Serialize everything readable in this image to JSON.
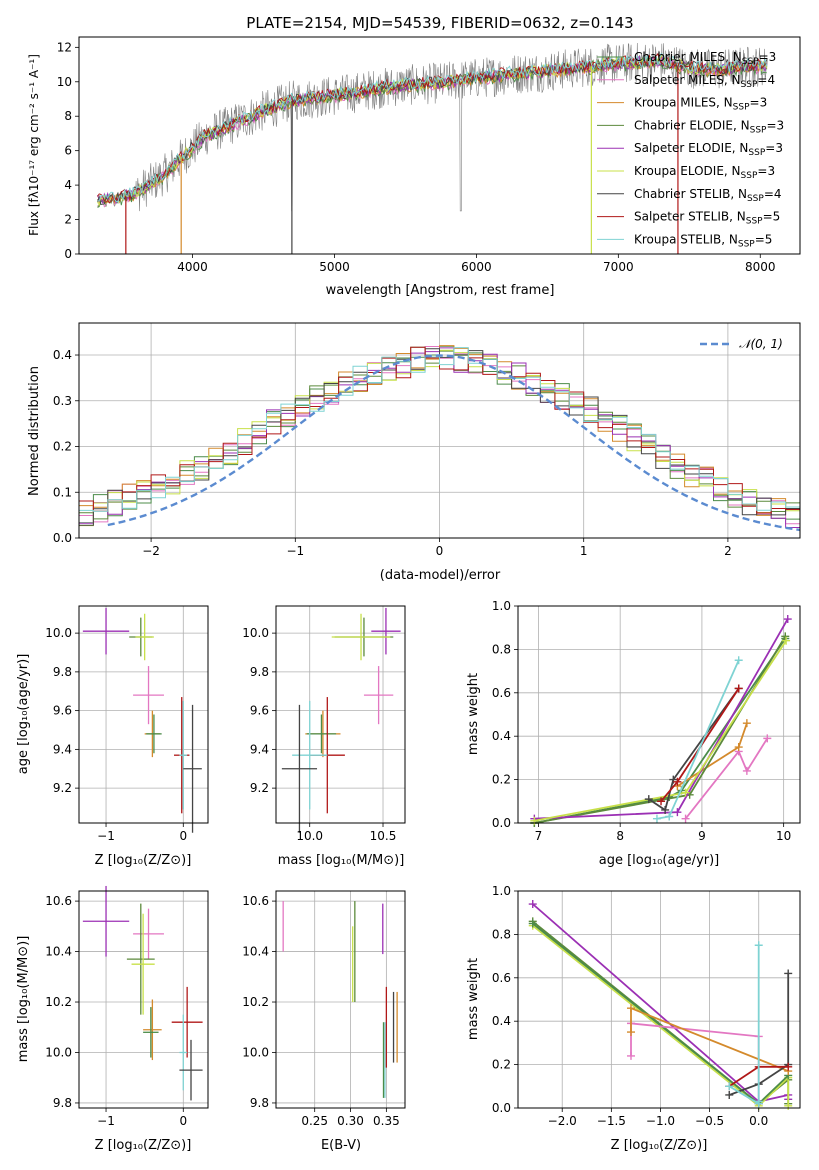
{
  "figure": {
    "title": "PLATE=2154, MJD=54539, FIBERID=0632, z=0.143"
  },
  "colors": {
    "Chabrier MILES": "#4c8c4a",
    "Salpeter MILES": "#e377c2",
    "Kroupa MILES": "#d48a2c",
    "Chabrier ELODIE": "#5c8a3c",
    "Salpeter ELODIE": "#9b30b4",
    "Kroupa ELODIE": "#c8e04a",
    "Chabrier STELIB": "#444444",
    "Salpeter STELIB": "#b01818",
    "Kroupa STELIB": "#7fd3d3",
    "data": "#808080",
    "normal": "#5b8bd0"
  },
  "chart_data": [
    {
      "id": "spectrum",
      "type": "line",
      "title": "PLATE=2154, MJD=54539, FIBERID=0632, z=0.143",
      "xlabel": "wavelength [Angstrom, rest frame]",
      "ylabel": "Flux [fλ10⁻¹⁷ erg cm⁻² s⁻¹ A⁻¹]",
      "xlim": [
        3200,
        8280
      ],
      "ylim": [
        0,
        12.6
      ],
      "xticks": [
        4000,
        5000,
        6000,
        7000,
        8000
      ],
      "yticks": [
        0,
        2,
        4,
        6,
        8,
        10,
        12
      ],
      "legend_position": "top-right",
      "legend": [
        {
          "label": "Chabrier MILES",
          "n": "3"
        },
        {
          "label": "Salpeter MILES",
          "n": "4"
        },
        {
          "label": "Kroupa MILES",
          "n": "3"
        },
        {
          "label": "Chabrier ELODIE",
          "n": "3"
        },
        {
          "label": "Salpeter ELODIE",
          "n": "3"
        },
        {
          "label": "Kroupa ELODIE",
          "n": "3"
        },
        {
          "label": "Chabrier STELIB",
          "n": "4"
        },
        {
          "label": "Salpeter STELIB",
          "n": "5"
        },
        {
          "label": "Kroupa STELIB",
          "n": "5"
        }
      ],
      "continuum": {
        "x": [
          3330,
          3500,
          3600,
          3800,
          3950,
          4100,
          4300,
          4500,
          4700,
          4900,
          5100,
          5300,
          5500,
          5700,
          5900,
          6100,
          6300,
          6500,
          6700,
          6900,
          7100,
          7300,
          7500,
          7700,
          7900,
          8050
        ],
        "y": [
          3.1,
          3.3,
          3.5,
          4.6,
          5.8,
          6.9,
          7.6,
          8.3,
          8.9,
          9.1,
          9.3,
          9.6,
          9.8,
          9.9,
          10.1,
          10.3,
          10.5,
          10.6,
          10.8,
          11.0,
          11.1,
          11.2,
          10.8,
          10.7,
          10.9,
          10.9
        ]
      }
    },
    {
      "id": "residuals",
      "type": "line",
      "xlabel": "(data-model)/error",
      "ylabel": "Normed distribution",
      "xlim": [
        -2.5,
        2.5
      ],
      "ylim": [
        0,
        0.47
      ],
      "xticks": [
        -2,
        -1,
        0,
        1,
        2
      ],
      "yticks": [
        0.0,
        0.1,
        0.2,
        0.3,
        0.4
      ],
      "legend_position": "top-right",
      "legend": [
        {
          "label": "𝒩(0, 1)"
        }
      ],
      "hist_bin_width": 0.1,
      "hist_base": [
        0.03,
        0.03,
        0.035,
        0.04,
        0.05,
        0.055,
        0.065,
        0.075,
        0.09,
        0.1,
        0.11,
        0.125,
        0.14,
        0.155,
        0.17,
        0.19,
        0.21,
        0.23,
        0.25,
        0.265,
        0.285,
        0.305,
        0.32,
        0.335,
        0.35,
        0.36,
        0.37,
        0.38,
        0.39,
        0.39,
        0.395,
        0.39,
        0.385,
        0.375,
        0.365,
        0.355,
        0.34,
        0.325,
        0.31,
        0.295,
        0.28,
        0.26,
        0.24,
        0.22,
        0.2,
        0.18,
        0.16,
        0.14,
        0.125,
        0.11,
        0.095,
        0.08,
        0.07,
        0.06,
        0.05,
        0.045,
        0.04,
        0.035,
        0.03,
        0.03
      ]
    },
    {
      "id": "age-vs-Z",
      "type": "scatter",
      "xlabel": "Z [log₁₀(Z/Z⊙)]",
      "ylabel": "age  [log₁₀(age/yr)]",
      "xlim": [
        -1.35,
        0.32
      ],
      "ylim": [
        9.02,
        10.14
      ],
      "xticks": [
        -1,
        0
      ],
      "yticks": [
        9.2,
        9.4,
        9.6,
        9.8,
        10.0
      ],
      "points": [
        {
          "model": "Salpeter ELODIE",
          "x": -1.0,
          "y": 10.01,
          "xerr": 0.3,
          "yerr": 0.12
        },
        {
          "model": "Chabrier ELODIE",
          "x": -0.55,
          "y": 9.98,
          "xerr": 0.15,
          "yerr": 0.1
        },
        {
          "model": "Kroupa ELODIE",
          "x": -0.5,
          "y": 9.98,
          "xerr": 0.12,
          "yerr": 0.12
        },
        {
          "model": "Salpeter MILES",
          "x": -0.45,
          "y": 9.68,
          "xerr": 0.2,
          "yerr": 0.15
        },
        {
          "model": "Kroupa MILES",
          "x": -0.4,
          "y": 9.48,
          "xerr": 0.1,
          "yerr": 0.12
        },
        {
          "model": "Chabrier MILES",
          "x": -0.38,
          "y": 9.48,
          "xerr": 0.1,
          "yerr": 0.1
        },
        {
          "model": "Salpeter STELIB",
          "x": -0.02,
          "y": 9.37,
          "xerr": 0.1,
          "yerr": 0.3
        },
        {
          "model": "Kroupa STELIB",
          "x": 0.0,
          "y": 9.37,
          "xerr": 0.05,
          "yerr": 0.28
        },
        {
          "model": "Chabrier STELIB",
          "x": 0.12,
          "y": 9.3,
          "xerr": 0.12,
          "yerr": 0.33
        }
      ]
    },
    {
      "id": "age-vs-mass",
      "type": "scatter",
      "xlabel": "mass [log₁₀(M/M⊙)]",
      "ylabel": "",
      "xlim": [
        9.77,
        10.65
      ],
      "ylim": [
        9.02,
        10.14
      ],
      "xticks": [
        10.0,
        10.5
      ],
      "yticks": [
        9.2,
        9.4,
        9.6,
        9.8,
        10.0
      ],
      "points": [
        {
          "model": "Salpeter ELODIE",
          "x": 10.52,
          "y": 10.01,
          "xerr": 0.1,
          "yerr": 0.12
        },
        {
          "model": "Chabrier ELODIE",
          "x": 10.37,
          "y": 9.98,
          "xerr": 0.2,
          "yerr": 0.1
        },
        {
          "model": "Kroupa ELODIE",
          "x": 10.35,
          "y": 9.98,
          "xerr": 0.2,
          "yerr": 0.12
        },
        {
          "model": "Salpeter MILES",
          "x": 10.47,
          "y": 9.68,
          "xerr": 0.1,
          "yerr": 0.15
        },
        {
          "model": "Kroupa MILES",
          "x": 10.09,
          "y": 9.48,
          "xerr": 0.12,
          "yerr": 0.12
        },
        {
          "model": "Chabrier MILES",
          "x": 10.08,
          "y": 9.48,
          "xerr": 0.1,
          "yerr": 0.1
        },
        {
          "model": "Salpeter STELIB",
          "x": 10.12,
          "y": 9.37,
          "xerr": 0.12,
          "yerr": 0.3
        },
        {
          "model": "Kroupa STELIB",
          "x": 10.0,
          "y": 9.37,
          "xerr": 0.12,
          "yerr": 0.28
        },
        {
          "model": "Chabrier STELIB",
          "x": 9.93,
          "y": 9.3,
          "xerr": 0.12,
          "yerr": 0.33
        }
      ]
    },
    {
      "id": "weight-vs-age",
      "type": "line",
      "xlabel": "age  [log₁₀(age/yr)]",
      "ylabel": "mass weight",
      "xlim": [
        6.75,
        10.2
      ],
      "ylim": [
        0,
        1.0
      ],
      "xticks": [
        7,
        8,
        9,
        10
      ],
      "yticks": [
        0.0,
        0.2,
        0.4,
        0.6,
        0.8,
        1.0
      ],
      "series": [
        {
          "model": "Chabrier MILES",
          "x": [
            6.95,
            8.6,
            8.75,
            10.02
          ],
          "y": [
            0.0,
            0.12,
            0.15,
            0.85
          ]
        },
        {
          "model": "Salpeter MILES",
          "x": [
            8.8,
            9.45,
            9.55,
            9.8
          ],
          "y": [
            0.02,
            0.33,
            0.24,
            0.39
          ]
        },
        {
          "model": "Kroupa MILES",
          "x": [
            8.7,
            9.45,
            9.55
          ],
          "y": [
            0.17,
            0.35,
            0.46
          ]
        },
        {
          "model": "Chabrier ELODIE",
          "x": [
            6.95,
            8.85,
            10.02
          ],
          "y": [
            0.0,
            0.13,
            0.86
          ]
        },
        {
          "model": "Salpeter ELODIE",
          "x": [
            6.95,
            8.7,
            10.05
          ],
          "y": [
            0.02,
            0.05,
            0.94
          ]
        },
        {
          "model": "Kroupa ELODIE",
          "x": [
            6.95,
            8.8,
            10.03
          ],
          "y": [
            0.01,
            0.14,
            0.84
          ]
        },
        {
          "model": "Chabrier STELIB",
          "x": [
            8.35,
            8.55,
            8.65,
            9.45
          ],
          "y": [
            0.11,
            0.06,
            0.2,
            0.62
          ]
        },
        {
          "model": "Salpeter STELIB",
          "x": [
            8.5,
            8.7,
            9.45
          ],
          "y": [
            0.1,
            0.19,
            0.62
          ]
        },
        {
          "model": "Kroupa STELIB",
          "x": [
            8.45,
            8.6,
            9.45
          ],
          "y": [
            0.02,
            0.03,
            0.75
          ]
        }
      ]
    },
    {
      "id": "mass-vs-Z",
      "type": "scatter",
      "xlabel": "Z [log₁₀(Z/Z⊙)]",
      "ylabel": "mass [log₁₀(M/M⊙)]",
      "xlim": [
        -1.35,
        0.32
      ],
      "ylim": [
        9.78,
        10.64
      ],
      "xticks": [
        -1,
        0
      ],
      "yticks": [
        9.8,
        10.0,
        10.2,
        10.4,
        10.6
      ],
      "points": [
        {
          "model": "Salpeter ELODIE",
          "x": -1.0,
          "y": 10.52,
          "xerr": 0.3,
          "yerr": 0.14
        },
        {
          "model": "Salpeter MILES",
          "x": -0.45,
          "y": 10.47,
          "xerr": 0.2,
          "yerr": 0.1
        },
        {
          "model": "Chabrier ELODIE",
          "x": -0.55,
          "y": 10.37,
          "xerr": 0.18,
          "yerr": 0.22
        },
        {
          "model": "Kroupa ELODIE",
          "x": -0.52,
          "y": 10.35,
          "xerr": 0.15,
          "yerr": 0.2
        },
        {
          "model": "Kroupa MILES",
          "x": -0.4,
          "y": 10.09,
          "xerr": 0.12,
          "yerr": 0.12
        },
        {
          "model": "Chabrier MILES",
          "x": -0.42,
          "y": 10.08,
          "xerr": 0.1,
          "yerr": 0.1
        },
        {
          "model": "Salpeter STELIB",
          "x": 0.05,
          "y": 10.12,
          "xerr": 0.2,
          "yerr": 0.14
        },
        {
          "model": "Kroupa STELIB",
          "x": 0.0,
          "y": 10.0,
          "xerr": 0.05,
          "yerr": 0.15
        },
        {
          "model": "Chabrier STELIB",
          "x": 0.1,
          "y": 9.93,
          "xerr": 0.15,
          "yerr": 0.12
        }
      ]
    },
    {
      "id": "mass-vs-ebv",
      "type": "scatter",
      "xlabel": "E(B-V)",
      "ylabel": "",
      "xlim": [
        0.196,
        0.376
      ],
      "ylim": [
        9.78,
        10.64
      ],
      "xticks": [
        0.25,
        0.3,
        0.35
      ],
      "yticks": [
        9.8,
        10.0,
        10.2,
        10.4,
        10.6
      ],
      "points": [
        {
          "model": "Salpeter MILES",
          "x": 0.206,
          "y": 10.5,
          "yerr": 0.1
        },
        {
          "model": "Chabrier ELODIE",
          "x": 0.306,
          "y": 10.4,
          "yerr": 0.2
        },
        {
          "model": "Kroupa ELODIE",
          "x": 0.303,
          "y": 10.35,
          "yerr": 0.15
        },
        {
          "model": "Salpeter ELODIE",
          "x": 0.345,
          "y": 10.49,
          "yerr": 0.1
        },
        {
          "model": "Salpeter STELIB",
          "x": 0.35,
          "y": 10.1,
          "yerr": 0.16
        },
        {
          "model": "Kroupa STELIB",
          "x": 0.348,
          "y": 9.97,
          "yerr": 0.15
        },
        {
          "model": "Chabrier MILES",
          "x": 0.346,
          "y": 9.97,
          "yerr": 0.15
        },
        {
          "model": "Kroupa MILES",
          "x": 0.365,
          "y": 10.1,
          "yerr": 0.14
        },
        {
          "model": "Chabrier STELIB",
          "x": 0.36,
          "y": 10.1,
          "yerr": 0.14
        }
      ]
    },
    {
      "id": "weight-vs-Z",
      "type": "line",
      "xlabel": "Z [log₁₀(Z/Z⊙)]",
      "ylabel": "mass weight",
      "xlim": [
        -2.45,
        0.42
      ],
      "ylim": [
        0,
        1.0
      ],
      "xticks": [
        -2.0,
        -1.5,
        -1.0,
        -0.5,
        0.0
      ],
      "yticks": [
        0.0,
        0.2,
        0.4,
        0.6,
        0.8,
        1.0
      ],
      "series": [
        {
          "model": "Salpeter ELODIE",
          "x": [
            -2.3,
            0.0,
            0.3,
            0.3
          ],
          "y": [
            0.94,
            0.03,
            0.06,
            0.04
          ]
        },
        {
          "model": "Chabrier ELODIE",
          "x": [
            -2.3,
            0.0,
            0.3,
            0.3
          ],
          "y": [
            0.86,
            0.02,
            0.13,
            0.02
          ]
        },
        {
          "model": "Kroupa ELODIE",
          "x": [
            -2.3,
            0.0,
            0.3,
            0.3
          ],
          "y": [
            0.84,
            0.01,
            0.14,
            0.01
          ]
        },
        {
          "model": "Chabrier MILES",
          "x": [
            -2.3,
            0.0,
            0.3
          ],
          "y": [
            0.85,
            0.02,
            0.15
          ]
        },
        {
          "model": "Salpeter MILES",
          "x": [
            -1.3,
            -1.3,
            0.0,
            0.0
          ],
          "y": [
            0.24,
            0.39,
            0.33,
            0.02
          ]
        },
        {
          "model": "Kroupa MILES",
          "x": [
            -1.3,
            -1.3,
            0.3
          ],
          "y": [
            0.35,
            0.46,
            0.17
          ]
        },
        {
          "model": "Chabrier STELIB",
          "x": [
            -0.3,
            0.0,
            0.3,
            0.3
          ],
          "y": [
            0.06,
            0.11,
            0.2,
            0.62
          ]
        },
        {
          "model": "Salpeter STELIB",
          "x": [
            -0.3,
            0.0,
            0.3
          ],
          "y": [
            0.1,
            0.19,
            0.19
          ]
        },
        {
          "model": "Kroupa STELIB",
          "x": [
            -0.3,
            0.0,
            0.0,
            0.0
          ],
          "y": [
            0.1,
            0.02,
            0.75,
            0.03
          ]
        }
      ]
    }
  ]
}
